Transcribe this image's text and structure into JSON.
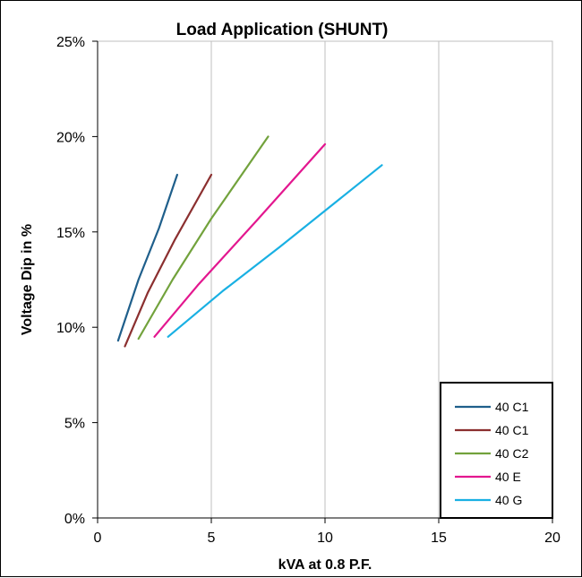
{
  "chart_data": {
    "type": "line",
    "title": "Load Application (SHUNT)",
    "xlabel": "kVA at 0.8 P.F.",
    "ylabel": "Voltage Dip in %",
    "xlim": [
      0,
      20
    ],
    "ylim": [
      0,
      25
    ],
    "x_ticks": [
      "0",
      "5",
      "10",
      "15",
      "20"
    ],
    "y_ticks": [
      "0%",
      "5%",
      "10%",
      "15%",
      "20%",
      "25%"
    ],
    "grid": "vertical",
    "legend_position": "bottom-right",
    "series": [
      {
        "name": "40 C1",
        "color": "#1f5f8b",
        "points": [
          [
            0.9,
            9.3
          ],
          [
            1.8,
            12.5
          ],
          [
            2.7,
            15.2
          ],
          [
            3.5,
            18.0
          ]
        ]
      },
      {
        "name": "40 C1",
        "color": "#8b2f2f",
        "points": [
          [
            1.2,
            9.0
          ],
          [
            2.2,
            11.8
          ],
          [
            3.4,
            14.6
          ],
          [
            5.0,
            18.0
          ]
        ]
      },
      {
        "name": "40 C2",
        "color": "#72a23c",
        "points": [
          [
            1.8,
            9.4
          ],
          [
            3.3,
            12.5
          ],
          [
            5.0,
            15.7
          ],
          [
            7.5,
            20.0
          ]
        ]
      },
      {
        "name": "40 E",
        "color": "#e3178f",
        "points": [
          [
            2.5,
            9.5
          ],
          [
            4.4,
            12.2
          ],
          [
            7.0,
            15.6
          ],
          [
            10.0,
            19.6
          ]
        ]
      },
      {
        "name": "40 G",
        "color": "#19b0e3",
        "points": [
          [
            3.1,
            9.5
          ],
          [
            5.5,
            11.9
          ],
          [
            8.0,
            14.2
          ],
          [
            12.5,
            18.5
          ]
        ]
      }
    ]
  }
}
